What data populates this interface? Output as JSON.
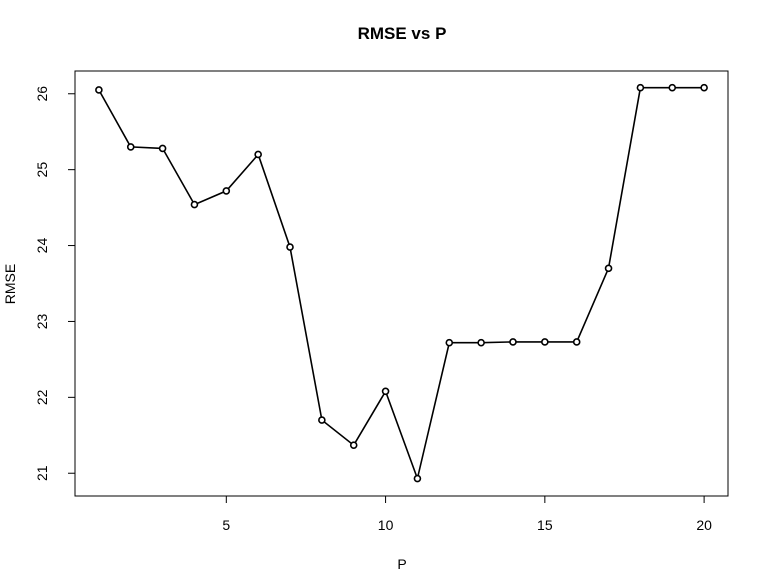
{
  "chart_data": {
    "type": "line",
    "title": "RMSE vs P",
    "xlabel": "P",
    "ylabel": "RMSE",
    "xlim": [
      0.25,
      20.75
    ],
    "ylim": [
      20.7,
      26.3
    ],
    "xticks": [
      5,
      10,
      15,
      20
    ],
    "yticks": [
      21,
      22,
      23,
      24,
      25,
      26
    ],
    "grid": false,
    "x": [
      1,
      2,
      3,
      4,
      5,
      6,
      7,
      8,
      9,
      10,
      11,
      12,
      13,
      14,
      15,
      16,
      17,
      18,
      19,
      20
    ],
    "series": [
      {
        "values": [
          26.05,
          25.3,
          25.28,
          24.54,
          24.72,
          25.2,
          23.98,
          21.7,
          21.37,
          22.08,
          20.93,
          22.72,
          22.72,
          22.73,
          22.73,
          22.73,
          23.7,
          26.08,
          26.08,
          26.08
        ]
      }
    ]
  }
}
